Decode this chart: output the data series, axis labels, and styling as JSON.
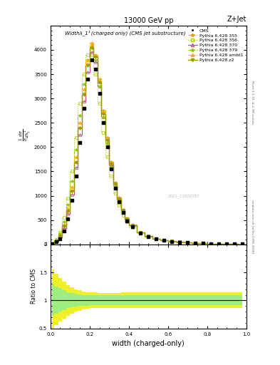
{
  "title_top": "13000 GeV pp",
  "title_right": "Z+Jet",
  "plot_title": "Widthλ_1¹ (charged only) (CMS jet substructure)",
  "xlabel": "width (charged-only)",
  "ylabel_ratio": "Ratio to CMS",
  "right_label1": "Rivet 3.1.10, ≥ 2.3M events",
  "right_label2": "mcplots.cern.ch [arXiv:1306.3436]",
  "watermark": "2021_11920187",
  "xlim": [
    0.0,
    1.0
  ],
  "ylim_main": [
    0,
    4500
  ],
  "ylim_ratio": [
    0.5,
    2.0
  ],
  "yticks_main": [
    0,
    500,
    1000,
    1500,
    2000,
    2500,
    3000,
    3500,
    4000,
    4500
  ],
  "ytick_labels_main": [
    "0",
    "500",
    "1000",
    "1500",
    "2000",
    "2500",
    "3000",
    "3500",
    "4000",
    ""
  ],
  "x_bins": [
    0.0,
    0.02,
    0.04,
    0.06,
    0.08,
    0.1,
    0.12,
    0.14,
    0.16,
    0.18,
    0.2,
    0.22,
    0.24,
    0.26,
    0.28,
    0.3,
    0.32,
    0.34,
    0.36,
    0.38,
    0.4,
    0.44,
    0.48,
    0.52,
    0.56,
    0.6,
    0.64,
    0.68,
    0.72,
    0.76,
    0.8,
    0.84,
    0.88,
    0.92,
    0.96,
    1.0
  ],
  "cms_vals": [
    10,
    50,
    120,
    280,
    520,
    900,
    1400,
    2100,
    2800,
    3400,
    3800,
    3600,
    3100,
    2500,
    2000,
    1550,
    1150,
    870,
    650,
    480,
    360,
    230,
    155,
    110,
    80,
    58,
    45,
    35,
    27,
    21,
    17,
    13,
    10,
    8,
    6
  ],
  "p355_vals": [
    15,
    70,
    170,
    380,
    680,
    1100,
    1700,
    2400,
    3100,
    3700,
    4100,
    3900,
    3400,
    2750,
    2200,
    1700,
    1270,
    960,
    720,
    540,
    400,
    250,
    168,
    118,
    85,
    62,
    47,
    36,
    28,
    22,
    17,
    13,
    10,
    8,
    6
  ],
  "p356_vals": [
    20,
    100,
    250,
    550,
    950,
    1500,
    2200,
    2900,
    3500,
    3900,
    3900,
    3500,
    2900,
    2300,
    1800,
    1400,
    1050,
    800,
    600,
    460,
    350,
    230,
    160,
    115,
    85,
    63,
    48,
    37,
    29,
    22,
    17,
    13,
    10,
    8,
    6
  ],
  "p370_vals": [
    12,
    60,
    150,
    340,
    620,
    1020,
    1580,
    2250,
    2950,
    3550,
    3950,
    3750,
    3250,
    2620,
    2100,
    1620,
    1220,
    920,
    690,
    515,
    385,
    240,
    162,
    114,
    83,
    61,
    46,
    35,
    27,
    21,
    16,
    13,
    10,
    8,
    6
  ],
  "p379_vals": [
    18,
    85,
    210,
    460,
    820,
    1300,
    1950,
    2650,
    3300,
    3800,
    4050,
    3800,
    3250,
    2620,
    2080,
    1600,
    1200,
    910,
    680,
    510,
    380,
    240,
    162,
    115,
    83,
    61,
    47,
    36,
    28,
    21,
    17,
    13,
    10,
    8,
    6
  ],
  "pambt1_vals": [
    16,
    75,
    185,
    410,
    740,
    1180,
    1800,
    2500,
    3200,
    3800,
    4150,
    3900,
    3380,
    2720,
    2170,
    1670,
    1250,
    945,
    710,
    530,
    395,
    248,
    167,
    118,
    85,
    62,
    47,
    36,
    28,
    22,
    17,
    13,
    10,
    8,
    6
  ],
  "pz2_vals": [
    14,
    68,
    168,
    375,
    680,
    1090,
    1680,
    2380,
    3080,
    3680,
    4050,
    3850,
    3320,
    2680,
    2140,
    1650,
    1240,
    940,
    705,
    530,
    395,
    248,
    167,
    118,
    85,
    63,
    48,
    37,
    28,
    22,
    17,
    13,
    10,
    8,
    6
  ],
  "colors": {
    "cms": "#000000",
    "p355": "#e8a000",
    "p356": "#aacc00",
    "p370": "#cc4488",
    "p379": "#88cc00",
    "pambt1": "#ffaa00",
    "pz2": "#999900"
  },
  "ratio_band_inner_upper": [
    1.3,
    1.25,
    1.22,
    1.18,
    1.15,
    1.13,
    1.12,
    1.11,
    1.1,
    1.1,
    1.09,
    1.09,
    1.09,
    1.09,
    1.09,
    1.09,
    1.09,
    1.09,
    1.09,
    1.09,
    1.09,
    1.09,
    1.09,
    1.09,
    1.09,
    1.09,
    1.09,
    1.09,
    1.09,
    1.09,
    1.09,
    1.09,
    1.09,
    1.09,
    1.09
  ],
  "ratio_band_inner_lower": [
    0.72,
    0.76,
    0.8,
    0.83,
    0.86,
    0.88,
    0.89,
    0.9,
    0.91,
    0.91,
    0.92,
    0.92,
    0.92,
    0.92,
    0.92,
    0.92,
    0.92,
    0.92,
    0.92,
    0.92,
    0.92,
    0.92,
    0.92,
    0.92,
    0.92,
    0.92,
    0.92,
    0.92,
    0.92,
    0.92,
    0.92,
    0.92,
    0.92,
    0.92,
    0.92
  ],
  "ratio_band_outer_upper": [
    1.55,
    1.48,
    1.4,
    1.33,
    1.27,
    1.23,
    1.2,
    1.18,
    1.16,
    1.15,
    1.14,
    1.14,
    1.13,
    1.13,
    1.13,
    1.13,
    1.13,
    1.13,
    1.14,
    1.14,
    1.14,
    1.14,
    1.14,
    1.14,
    1.14,
    1.14,
    1.14,
    1.14,
    1.14,
    1.14,
    1.14,
    1.14,
    1.14,
    1.14,
    1.14
  ],
  "ratio_band_outer_lower": [
    0.5,
    0.56,
    0.63,
    0.68,
    0.73,
    0.77,
    0.8,
    0.82,
    0.84,
    0.85,
    0.86,
    0.86,
    0.86,
    0.87,
    0.87,
    0.87,
    0.87,
    0.87,
    0.86,
    0.86,
    0.86,
    0.86,
    0.86,
    0.86,
    0.86,
    0.86,
    0.86,
    0.86,
    0.86,
    0.86,
    0.86,
    0.86,
    0.86,
    0.86,
    0.86
  ],
  "ratio_band_inner_color": "#90ee90",
  "ratio_band_outer_color": "#eeee00"
}
